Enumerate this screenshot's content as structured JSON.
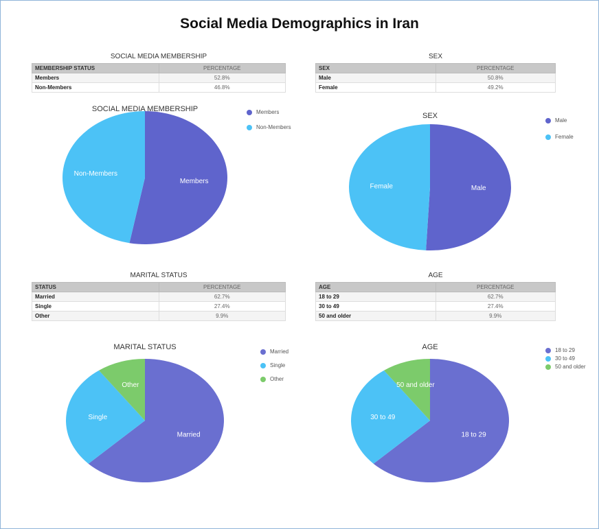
{
  "title": "Social Media Demographics in Iran",
  "tables": [
    {
      "title": "SOCIAL MEDIA MEMBERSHIP",
      "columns": [
        "MEMBERSHIP STATUS",
        "PERCENTAGE"
      ],
      "rows": [
        [
          "Members",
          "52.8%"
        ],
        [
          "Non-Members",
          "46.8%"
        ]
      ]
    },
    {
      "title": "SEX",
      "columns": [
        "SEX",
        "PERCENTAGE"
      ],
      "rows": [
        [
          "Male",
          "50.8%"
        ],
        [
          "Female",
          "49.2%"
        ]
      ]
    },
    {
      "title": "MARITAL STATUS",
      "columns": [
        "STATUS",
        "PERCENTAGE"
      ],
      "rows": [
        [
          "Married",
          "62.7%"
        ],
        [
          "Single",
          "27.4%"
        ],
        [
          "Other",
          "9.9%"
        ]
      ]
    },
    {
      "title": "AGE",
      "columns": [
        "AGE",
        "PERCENTAGE"
      ],
      "rows": [
        [
          "18 to 29",
          "62.7%"
        ],
        [
          "30 to 49",
          "27.4%"
        ],
        [
          "50 and older",
          "9.9%"
        ]
      ]
    }
  ],
  "chart_data": [
    {
      "type": "pie",
      "title": "SOCIAL MEDIA MEMBERSHIP",
      "categories": [
        "Members",
        "Non-Members"
      ],
      "values": [
        52.8,
        46.8
      ],
      "colors": [
        "#5f64cc",
        "#4cc2f6"
      ]
    },
    {
      "type": "pie",
      "title": "SEX",
      "categories": [
        "Male",
        "Female"
      ],
      "values": [
        50.8,
        49.2
      ],
      "colors": [
        "#5f64cc",
        "#4cc2f6"
      ]
    },
    {
      "type": "pie",
      "title": "MARITAL STATUS",
      "categories": [
        "Married",
        "Single",
        "Other"
      ],
      "values": [
        62.7,
        27.4,
        9.9
      ],
      "colors": [
        "#6a6fd0",
        "#4cc2f6",
        "#7ccb6b"
      ]
    },
    {
      "type": "pie",
      "title": "AGE",
      "categories": [
        "18 to 29",
        "30 to 49",
        "50 and older"
      ],
      "values": [
        62.7,
        27.4,
        9.9
      ],
      "colors": [
        "#6a6fd0",
        "#4cc2f6",
        "#7ccb6b"
      ]
    }
  ]
}
